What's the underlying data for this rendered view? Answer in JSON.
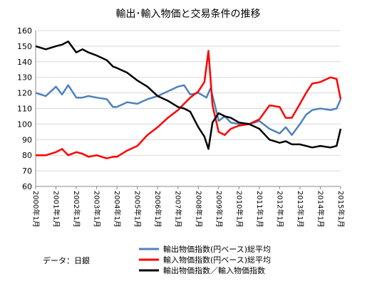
{
  "chart_data": {
    "type": "line",
    "title": "輸出･輸入物価と交易条件の推移",
    "source": "データ：日銀",
    "ylim": [
      60,
      160
    ],
    "yticks": [
      60,
      70,
      80,
      90,
      100,
      110,
      120,
      130,
      140,
      150,
      160
    ],
    "xlim": [
      2000.0,
      2015.0
    ],
    "xticks": [
      "2000年1月",
      "2001年1月",
      "2002年1月",
      "2003年1月",
      "2004年1月",
      "2005年1月",
      "2006年1月",
      "2007年1月",
      "2008年1月",
      "2009年1月",
      "2010年1月",
      "2011年1月",
      "2012年1月",
      "2013年1月",
      "2014年1月",
      "2015年1月"
    ],
    "grid": true,
    "legend_position": "bottom",
    "series": [
      {
        "name": "輸出物価指数(円ベース)総平均",
        "color": "#4f81bd",
        "x": [
          2000.0,
          2000.5,
          2001.0,
          2001.3,
          2001.6,
          2002.0,
          2002.3,
          2002.6,
          2003.0,
          2003.5,
          2003.8,
          2004.0,
          2004.5,
          2005.0,
          2005.5,
          2006.0,
          2006.5,
          2007.0,
          2007.3,
          2007.6,
          2008.0,
          2008.4,
          2008.6,
          2008.8,
          2009.0,
          2009.3,
          2009.6,
          2010.0,
          2010.5,
          2011.0,
          2011.5,
          2012.0,
          2012.3,
          2012.6,
          2013.0,
          2013.3,
          2013.6,
          2014.0,
          2014.5,
          2014.8,
          2015.0
        ],
        "y": [
          120,
          118,
          124,
          119,
          125,
          117,
          117,
          118,
          117,
          116,
          111,
          111,
          114,
          113,
          116,
          118,
          121,
          124,
          125,
          119,
          120,
          117,
          123,
          113,
          102,
          105,
          101,
          100,
          100,
          102,
          97,
          94,
          98,
          93,
          100,
          106,
          109,
          110,
          109,
          110,
          116
        ]
      },
      {
        "name": "輸入物価指数(円ベース)総平均",
        "color": "#ff0000",
        "x": [
          2000.0,
          2000.5,
          2001.0,
          2001.3,
          2001.6,
          2002.0,
          2002.3,
          2002.6,
          2003.0,
          2003.5,
          2003.8,
          2004.0,
          2004.5,
          2005.0,
          2005.5,
          2006.0,
          2006.5,
          2007.0,
          2007.3,
          2007.6,
          2008.0,
          2008.3,
          2008.5,
          2008.7,
          2009.0,
          2009.3,
          2009.6,
          2010.0,
          2010.5,
          2011.0,
          2011.5,
          2012.0,
          2012.3,
          2012.6,
          2013.0,
          2013.3,
          2013.6,
          2014.0,
          2014.5,
          2014.8,
          2015.0
        ],
        "y": [
          80,
          80,
          82,
          84,
          80,
          82,
          81,
          79,
          80,
          78,
          79,
          79,
          83,
          86,
          93,
          98,
          104,
          109,
          113,
          117,
          121,
          127,
          147,
          112,
          95,
          93,
          97,
          99,
          100,
          103,
          112,
          111,
          104,
          104,
          113,
          120,
          126,
          127,
          130,
          129,
          116
        ]
      },
      {
        "name": "輸出物価指数／輸入物価指数",
        "color": "#000000",
        "x": [
          2000.0,
          2000.5,
          2001.0,
          2001.3,
          2001.6,
          2002.0,
          2002.3,
          2002.6,
          2003.0,
          2003.5,
          2003.8,
          2004.0,
          2004.5,
          2005.0,
          2005.5,
          2006.0,
          2006.5,
          2007.0,
          2007.3,
          2007.6,
          2008.0,
          2008.3,
          2008.5,
          2008.7,
          2009.0,
          2009.3,
          2009.6,
          2010.0,
          2010.5,
          2011.0,
          2011.5,
          2012.0,
          2012.3,
          2012.6,
          2013.0,
          2013.3,
          2013.6,
          2014.0,
          2014.5,
          2014.8,
          2015.0
        ],
        "y": [
          150,
          148,
          150,
          151,
          153,
          146,
          148,
          146,
          144,
          141,
          137,
          136,
          133,
          128,
          124,
          118,
          115,
          111,
          110,
          108,
          98,
          92,
          84,
          101,
          107,
          105,
          104,
          101,
          100,
          97,
          90,
          88,
          89,
          87,
          87,
          86,
          85,
          86,
          85,
          86,
          97
        ]
      }
    ]
  }
}
